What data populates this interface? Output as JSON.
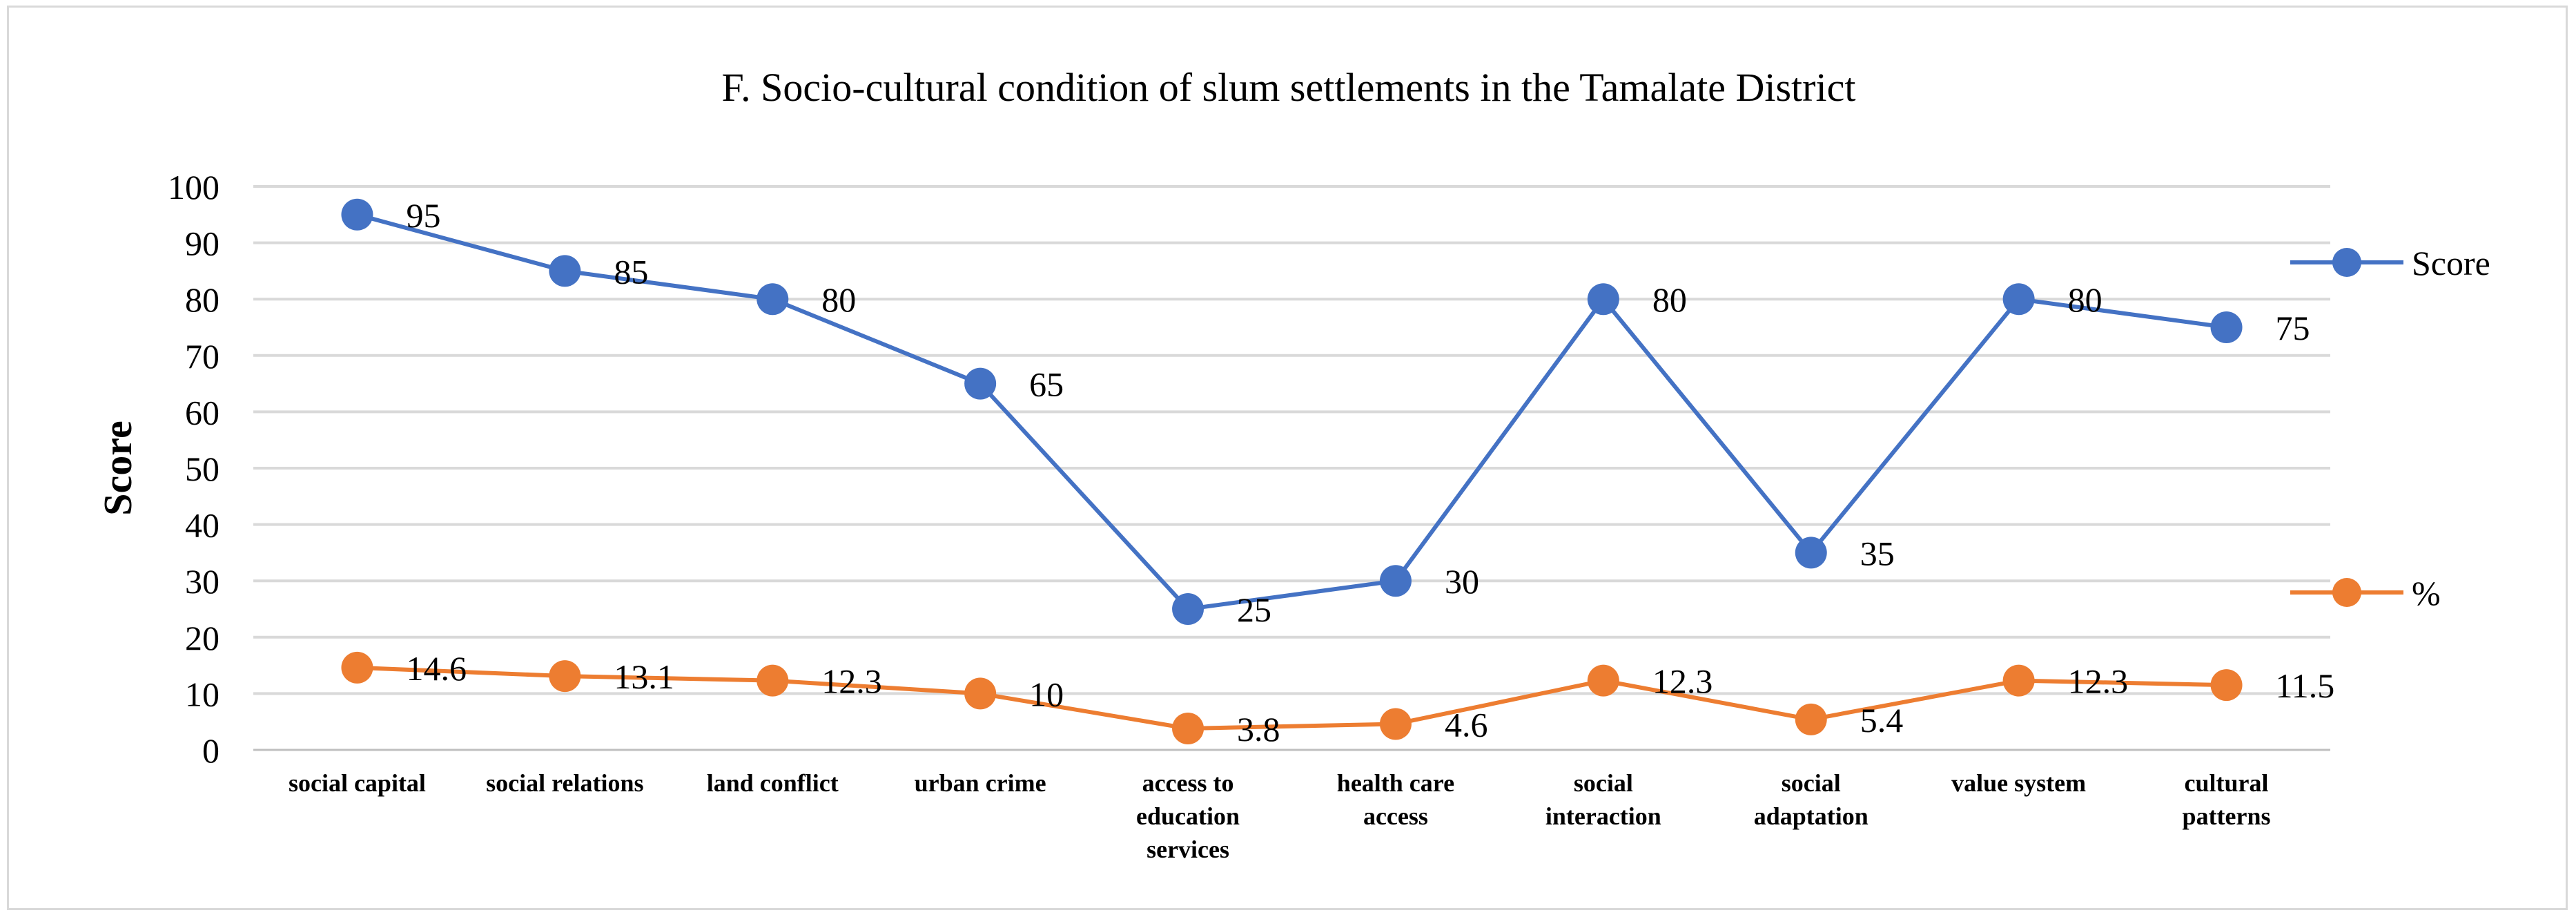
{
  "chart_data": {
    "type": "line",
    "title": "F. Socio-cultural condition of slum settlements in the Tamalate District",
    "xlabel": "",
    "ylabel": "Score",
    "ylim": [
      0,
      100
    ],
    "yticks": [
      "0",
      "10",
      "20",
      "30",
      "40",
      "50",
      "60",
      "70",
      "80",
      "90",
      "100"
    ],
    "grid": true,
    "legend_position": "right",
    "categories": [
      [
        "social capital"
      ],
      [
        "social relations"
      ],
      [
        "land conflict"
      ],
      [
        "urban crime"
      ],
      [
        "access to",
        "education",
        "services"
      ],
      [
        "health care",
        "access"
      ],
      [
        "social",
        "interaction"
      ],
      [
        "social",
        "adaptation"
      ],
      [
        "value system"
      ],
      [
        "cultural",
        "patterns"
      ]
    ],
    "series": [
      {
        "name": "Score",
        "color": "#4472c4",
        "values": [
          95,
          85,
          80,
          65,
          25,
          30,
          80,
          35,
          80,
          75
        ],
        "labels": [
          "95",
          "85",
          "80",
          "65",
          "25",
          "30",
          "80",
          "35",
          "80",
          "75"
        ]
      },
      {
        "name": "%",
        "color": "#ed7d31",
        "values": [
          14.6,
          13.1,
          12.3,
          10,
          3.8,
          4.6,
          12.3,
          5.4,
          12.3,
          11.5
        ],
        "labels": [
          "14.6",
          "13.1",
          "12.3",
          "10",
          "3.8",
          "4.6",
          "12.3",
          "5.4",
          "12.3",
          "11.5"
        ]
      }
    ]
  }
}
